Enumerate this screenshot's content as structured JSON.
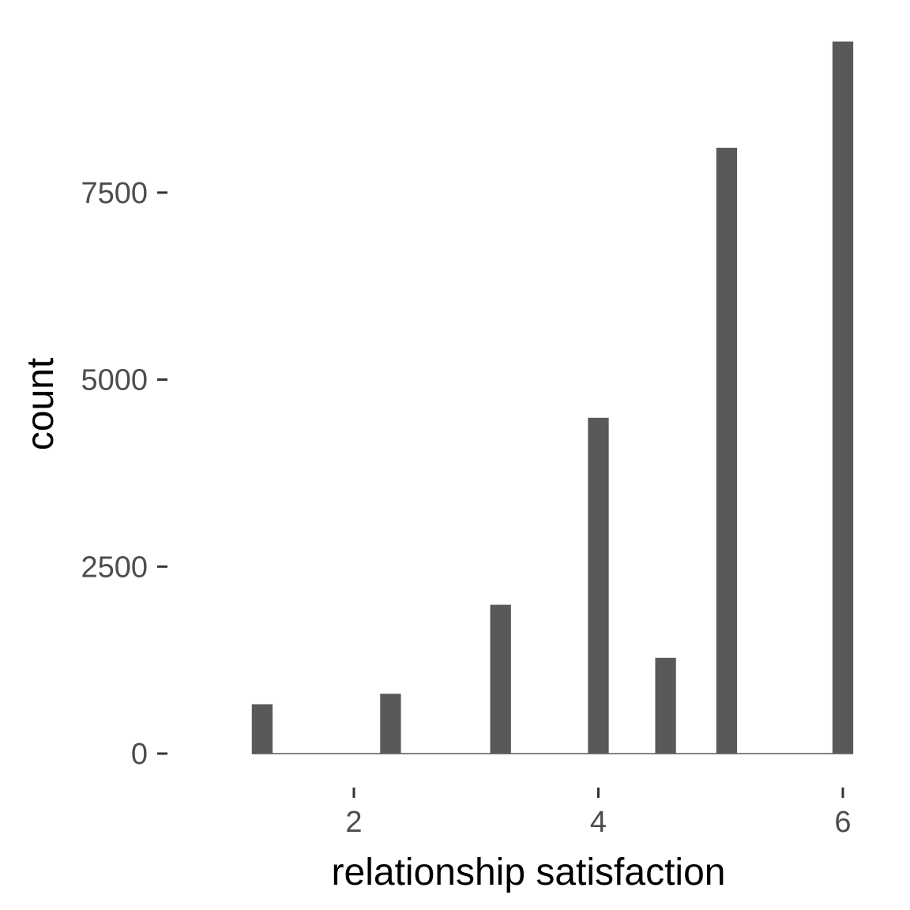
{
  "chart_data": {
    "type": "bar",
    "title": "",
    "xlabel": "relationship satisfaction",
    "ylabel": "count",
    "x": [
      1.25,
      2.3,
      3.2,
      4.0,
      4.55,
      5.05,
      6.0
    ],
    "values": [
      660,
      800,
      1990,
      4490,
      1280,
      8100,
      9520
    ],
    "bar_width": 0.17,
    "xlim": [
      0.74,
      6.11
    ],
    "ylim": [
      0,
      9600
    ],
    "x_ticks": [
      2,
      4,
      6
    ],
    "x_tick_labels": [
      "2",
      "4",
      "6"
    ],
    "y_ticks": [
      0,
      2500,
      5000,
      7500
    ],
    "y_tick_labels": [
      "0",
      "2500",
      "5000",
      "7500"
    ],
    "grid": false,
    "legend": "none",
    "colors": {
      "bar": "#595959",
      "baseline": "#595959",
      "tick_label": "#4d4d4d",
      "axis_title": "#000000"
    }
  }
}
